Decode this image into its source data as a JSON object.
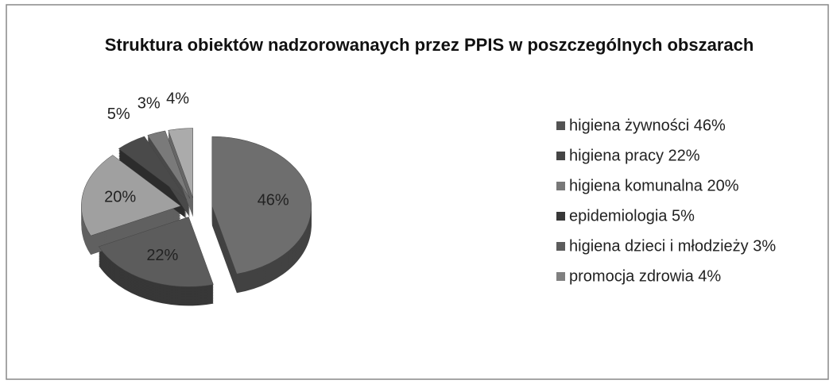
{
  "chart_data": {
    "type": "pie",
    "title": "Struktura obiektów nadzorowanaych przez PPIS w poszczególnych obszarach",
    "categories": [
      "higiena żywności 46%",
      "higiena pracy 22%",
      "higiena komunalna 20%",
      "epidemiologia 5%",
      "higiena dzieci i młodzieży 3%",
      "promocja zdrowia 4%"
    ],
    "values": [
      46,
      22,
      20,
      5,
      3,
      4
    ],
    "value_labels": [
      "46%",
      "22%",
      "20%",
      "5%",
      "3%",
      "4%"
    ],
    "colors": [
      "#6e6e6e",
      "#5c5c5c",
      "#a0a0a0",
      "#4a4a4a",
      "#7a7a7a",
      "#ababab"
    ],
    "legend": "right"
  }
}
